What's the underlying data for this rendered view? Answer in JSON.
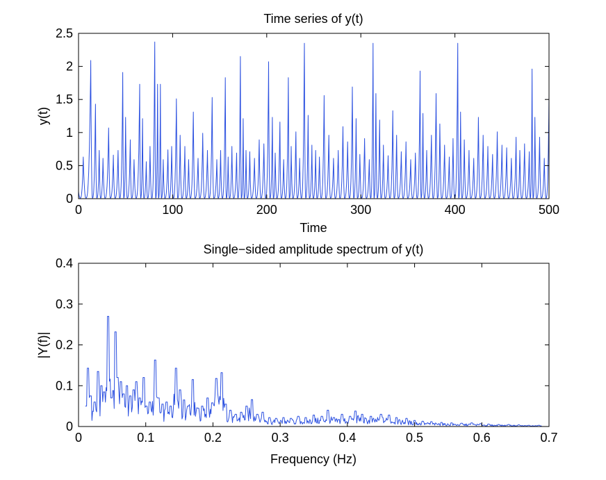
{
  "figure": {
    "background": "#ffffff",
    "series_color": "#2b50e0"
  },
  "chart_data": [
    {
      "type": "line",
      "title": "Time series of y(t)",
      "xlabel": "Time",
      "ylabel": "y(t)",
      "xlim": [
        0,
        500
      ],
      "ylim": [
        0,
        2.5
      ],
      "xticks": [
        0,
        100,
        200,
        300,
        400,
        500
      ],
      "xtick_labels": [
        "0",
        "100",
        "200",
        "300",
        "400",
        "500"
      ],
      "yticks": [
        0,
        0.5,
        1,
        1.5,
        2,
        2.5
      ],
      "ytick_labels": [
        "0",
        "0.5",
        "1",
        "1.5",
        "2",
        "2.5"
      ],
      "series": [
        {
          "name": "y(t)",
          "peak_times": [
            5,
            13,
            18,
            22,
            26,
            32,
            37,
            42,
            47,
            50,
            55,
            59,
            65,
            68,
            72,
            76,
            81,
            84,
            87,
            90,
            95,
            99,
            104,
            108,
            113,
            117,
            122,
            127,
            132,
            137,
            142,
            147,
            151,
            156,
            159,
            163,
            168,
            172,
            175,
            178,
            182,
            187,
            192,
            197,
            202,
            206,
            209,
            214,
            218,
            223,
            226,
            231,
            235,
            240,
            244,
            248,
            252,
            256,
            261,
            266,
            271,
            276,
            281,
            286,
            291,
            295,
            299,
            304,
            309,
            313,
            316,
            320,
            324,
            329,
            334,
            338,
            343,
            348,
            353,
            358,
            363,
            366,
            370,
            375,
            380,
            384,
            389,
            394,
            398,
            403,
            406,
            410,
            415,
            420,
            425,
            430,
            435,
            440,
            445,
            450,
            455,
            460,
            465,
            469,
            474,
            479,
            482,
            485,
            490,
            495,
            500
          ],
          "peak_values": [
            0.62,
            2.08,
            1.42,
            0.72,
            0.6,
            1.06,
            0.65,
            0.72,
            1.9,
            1.22,
            0.88,
            0.58,
            1.72,
            1.2,
            0.55,
            0.78,
            2.36,
            1.72,
            1.72,
            0.58,
            0.73,
            0.78,
            1.5,
            0.95,
            0.78,
            0.58,
            1.3,
            0.6,
            0.98,
            0.72,
            1.52,
            0.58,
            0.72,
            1.82,
            0.62,
            0.78,
            0.68,
            2.14,
            1.2,
            0.72,
            0.7,
            0.6,
            0.88,
            0.82,
            2.06,
            1.22,
            0.68,
            1.15,
            0.58,
            1.82,
            0.78,
            1.0,
            0.6,
            2.34,
            1.25,
            0.8,
            0.72,
            0.62,
            1.55,
            0.95,
            0.6,
            0.72,
            1.08,
            0.85,
            1.68,
            1.2,
            0.66,
            0.9,
            0.58,
            2.34,
            1.58,
            1.18,
            0.8,
            0.64,
            1.32,
            0.95,
            0.7,
            0.85,
            0.58,
            0.68,
            1.92,
            1.28,
            0.72,
            0.95,
            1.58,
            1.12,
            0.8,
            0.62,
            0.9,
            2.34,
            1.3,
            0.88,
            0.72,
            0.6,
            1.22,
            0.95,
            0.78,
            0.66,
            1.0,
            0.8,
            0.76,
            0.6,
            0.92,
            0.72,
            0.82,
            0.7,
            1.95,
            1.22,
            0.92,
            0.6,
            1.55
          ]
        }
      ]
    },
    {
      "type": "line",
      "title": "Single−sided amplitude spectrum of y(t)",
      "xlabel": "Frequency (Hz)",
      "ylabel": "|Y(f)|",
      "xlim": [
        0,
        0.7
      ],
      "ylim": [
        0,
        0.4
      ],
      "xticks": [
        0,
        0.1,
        0.2,
        0.3,
        0.4,
        0.5,
        0.6,
        0.7
      ],
      "xtick_labels": [
        "0",
        "0.1",
        "0.2",
        "0.3",
        "0.4",
        "0.5",
        "0.6",
        "0.7"
      ],
      "yticks": [
        0,
        0.1,
        0.2,
        0.3,
        0.4
      ],
      "ytick_labels": [
        "0",
        "0.1",
        "0.2",
        "0.3",
        "0.4"
      ],
      "series": [
        {
          "name": "|Y(f)|",
          "peak_freqs": [
            0.011,
            0.014,
            0.018,
            0.024,
            0.029,
            0.034,
            0.038,
            0.044,
            0.049,
            0.055,
            0.058,
            0.063,
            0.067,
            0.072,
            0.077,
            0.082,
            0.086,
            0.091,
            0.097,
            0.101,
            0.106,
            0.114,
            0.119,
            0.125,
            0.131,
            0.137,
            0.145,
            0.151,
            0.157,
            0.163,
            0.17,
            0.178,
            0.184,
            0.192,
            0.199,
            0.205,
            0.213,
            0.219,
            0.226,
            0.234,
            0.242,
            0.25,
            0.258,
            0.266,
            0.274,
            0.284,
            0.294,
            0.305,
            0.316,
            0.327,
            0.338,
            0.35,
            0.362,
            0.371,
            0.38,
            0.392,
            0.404,
            0.412,
            0.422,
            0.435,
            0.45,
            0.462,
            0.473,
            0.488,
            0.5,
            0.512,
            0.525,
            0.54,
            0.555,
            0.57,
            0.585,
            0.598,
            0.61,
            0.625,
            0.64,
            0.655,
            0.67,
            0.685
          ],
          "peak_values": [
            0.05,
            0.143,
            0.075,
            0.06,
            0.135,
            0.1,
            0.085,
            0.27,
            0.07,
            0.232,
            0.12,
            0.11,
            0.08,
            0.1,
            0.075,
            0.09,
            0.11,
            0.07,
            0.12,
            0.05,
            0.06,
            0.163,
            0.07,
            0.055,
            0.06,
            0.05,
            0.143,
            0.09,
            0.065,
            0.05,
            0.115,
            0.045,
            0.05,
            0.07,
            0.058,
            0.118,
            0.132,
            0.055,
            0.04,
            0.03,
            0.035,
            0.05,
            0.066,
            0.03,
            0.035,
            0.022,
            0.02,
            0.022,
            0.02,
            0.025,
            0.022,
            0.028,
            0.025,
            0.04,
            0.022,
            0.03,
            0.025,
            0.038,
            0.03,
            0.025,
            0.03,
            0.028,
            0.022,
            0.02,
            0.015,
            0.013,
            0.012,
            0.01,
            0.009,
            0.008,
            0.009,
            0.007,
            0.006,
            0.005,
            0.005,
            0.004,
            0.003,
            0.003
          ]
        }
      ]
    }
  ]
}
